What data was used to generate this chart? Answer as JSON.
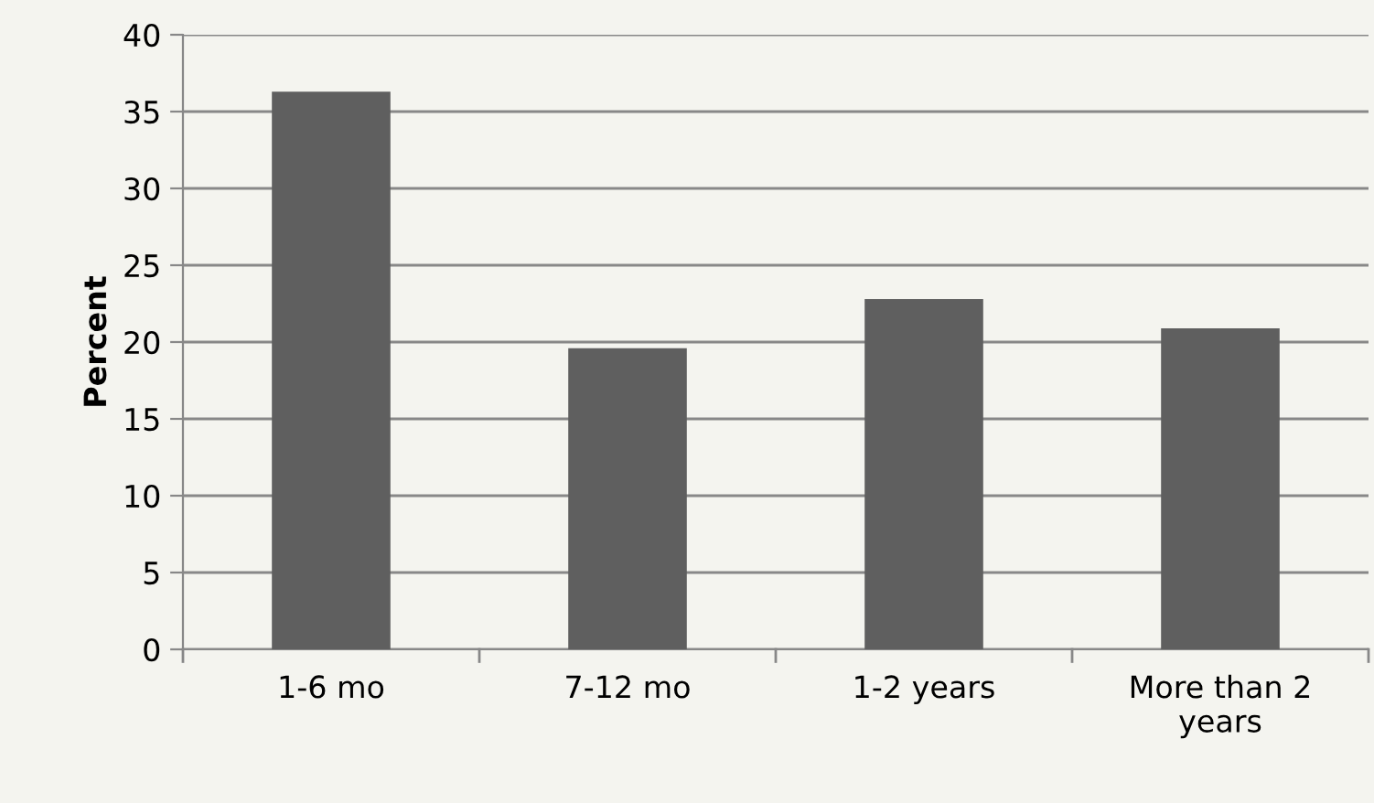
{
  "chart_data": {
    "type": "bar",
    "ylabel": "Percent",
    "categories": [
      "1-6 mo",
      "7-12 mo",
      "1-2 years",
      "More than 2\nyears"
    ],
    "values": [
      36.3,
      19.6,
      22.8,
      20.9
    ],
    "color": "#5f5f5f",
    "ylim": [
      0,
      40
    ],
    "yticks": [
      0,
      5,
      10,
      15,
      20,
      25,
      30,
      35,
      40
    ],
    "grid": "y"
  }
}
